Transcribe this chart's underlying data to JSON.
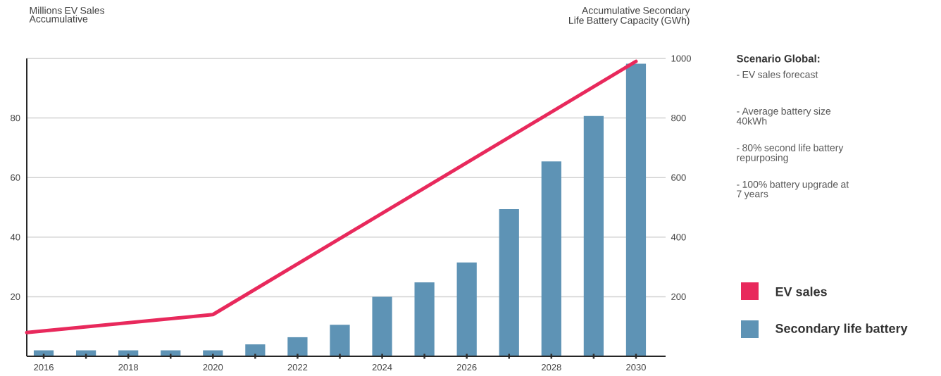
{
  "chart_data": {
    "type": "bar",
    "ylabel": "Millions EV Sales Accumulative",
    "y2label": "Accumulative Secondary Life Battery Capacity (GWh)",
    "annotations": [
      "Scenario Global:",
      "- EV sales forecast",
      "- Average battery size 40kWh",
      "- 80% second life battery repurposing",
      "- 100% battery upgrade at 7 years"
    ],
    "xlim": [
      2015.6,
      2030.7
    ],
    "xticks": [
      2016,
      {
        "value": 2017,
        "label": null
      },
      2018,
      {
        "value": 2019,
        "label": null
      },
      2020,
      {
        "value": 2021,
        "label": null
      },
      2022,
      {
        "value": 2023,
        "label": null
      },
      2024,
      {
        "value": 2025,
        "label": null
      },
      2026,
      {
        "value": 2027,
        "label": null
      },
      2028,
      {
        "value": 2029,
        "label": null
      },
      2030
    ],
    "ylim": [
      0,
      100
    ],
    "yticks": [
      20,
      40,
      60,
      80
    ],
    "y2lim": [
      0,
      1000
    ],
    "y2ticks": [
      200,
      400,
      600,
      800,
      1000
    ],
    "grid": "y",
    "legend": "right",
    "series": [
      {
        "name": "EV sales",
        "type": "line",
        "color": "#e8295c",
        "x": [
          2015.6,
          2020,
          2030
        ],
        "values": [
          8,
          14,
          99
        ]
      },
      {
        "name": "Secondary life battery",
        "axis": "y2",
        "color": "#5e93b5",
        "x": [
          2016,
          2017,
          2018,
          2019,
          2020,
          2021,
          2022,
          2023,
          2024,
          2025,
          2026,
          2027,
          2028,
          2029,
          2030
        ],
        "values": [
          20,
          20,
          20,
          20,
          20,
          40,
          64,
          106,
          200,
          248,
          315,
          494,
          654,
          807,
          982
        ]
      }
    ]
  }
}
